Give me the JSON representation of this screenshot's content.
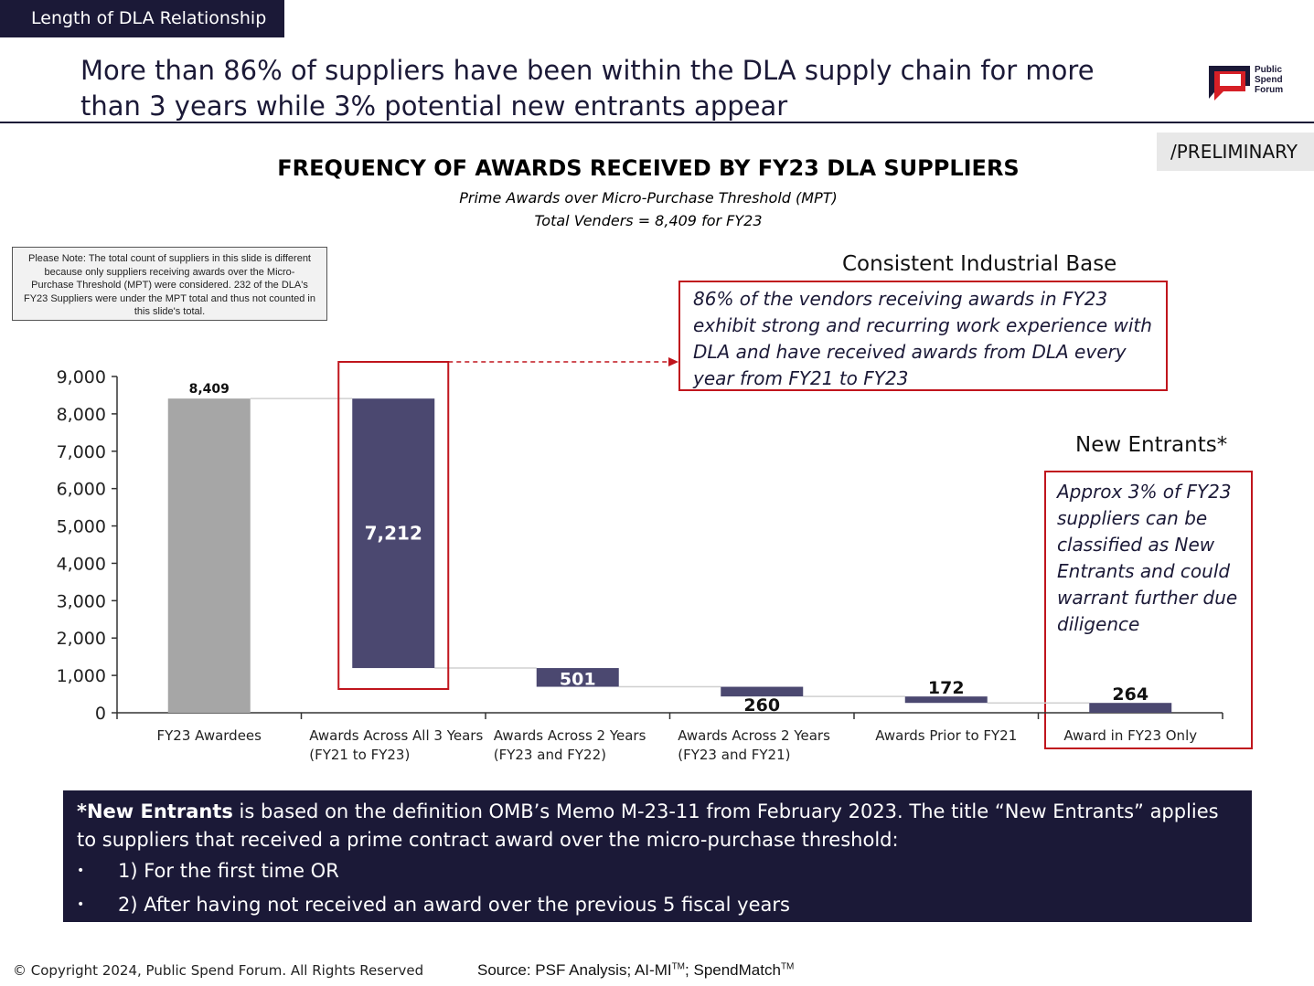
{
  "header": {
    "section_tag": "Length of DLA Relationship",
    "headline": "More than 86% of suppliers have been within the DLA supply chain for more than 3 years while 3% potential new entrants appear",
    "logo_text": [
      "Public",
      "Spend",
      "Forum"
    ],
    "status_label": "/PRELIMINARY"
  },
  "colors": {
    "navy": "#1b1937",
    "bar_gray": "#a6a6a6",
    "bar_purple": "#4b4870",
    "red": "#c0151d"
  },
  "note": "Please Note: The total count of suppliers in this slide is different because only suppliers receiving awards over the Micro-Purchase Threshold (MPT) were considered. 232 of the DLA's FY23 Suppliers were under the MPT total and thus not counted in this slide's total.",
  "callouts": {
    "consistent": {
      "title": "Consistent Industrial Base",
      "text": "86% of the vendors receiving awards in FY23 exhibit strong and recurring work experience with DLA and have received awards from DLA every year from FY21 to FY23"
    },
    "new_entrants": {
      "title": "New Entrants*",
      "text": "Approx 3% of FY23 suppliers can be classified as New Entrants and could warrant further due diligence"
    }
  },
  "chart_data": {
    "type": "bar",
    "subtype": "waterfall",
    "title": "FREQUENCY OF AWARDS RECEIVED BY FY23 DLA SUPPLIERS",
    "subtitle": [
      "Prime Awards over Micro-Purchase Threshold (MPT)",
      "Total Venders = 8,409 for FY23"
    ],
    "categories": [
      [
        "FY23 Awardees"
      ],
      [
        "Awards Across All 3 Years",
        "(FY21 to FY23)"
      ],
      [
        "Awards Across 2 Years",
        "(FY23 and FY22)"
      ],
      [
        "Awards Across 2 Years",
        "(FY23 and FY21)"
      ],
      [
        "Awards Prior to FY21"
      ],
      [
        "Award in FY23 Only"
      ]
    ],
    "values": [
      8409,
      7212,
      501,
      260,
      172,
      264
    ],
    "value_labels": [
      "8,409",
      "7,212",
      "501",
      "260",
      "172",
      "264"
    ],
    "kinds": [
      "total",
      "step",
      "step",
      "step",
      "step",
      "step"
    ],
    "ylim": [
      0,
      9000
    ],
    "yticks": [
      0,
      1000,
      2000,
      3000,
      4000,
      5000,
      6000,
      7000,
      8000,
      9000
    ],
    "ytick_labels": [
      "0",
      "1,000",
      "2,000",
      "3,000",
      "4,000",
      "5,000",
      "6,000",
      "7,000",
      "8,000",
      "9,000"
    ],
    "grid": false,
    "legend": "none"
  },
  "definition": {
    "term": "*New Entrants",
    "text": " is based on the definition OMB’s Memo M-23-11 from February 2023.  The title “New Entrants” applies to suppliers that received a prime contract award over the micro-purchase threshold:",
    "bullets": [
      "1) For the first time OR",
      "2) After having not received an award over the previous 5 fiscal years"
    ]
  },
  "footer": {
    "copyright": "© Copyright 2024, Public Spend Forum. All Rights Reserved",
    "source_prefix": "Source: PSF Analysis; AI-MI",
    "source_tm1": "TM",
    "source_mid": "; SpendMatch",
    "source_tm2": "TM"
  }
}
